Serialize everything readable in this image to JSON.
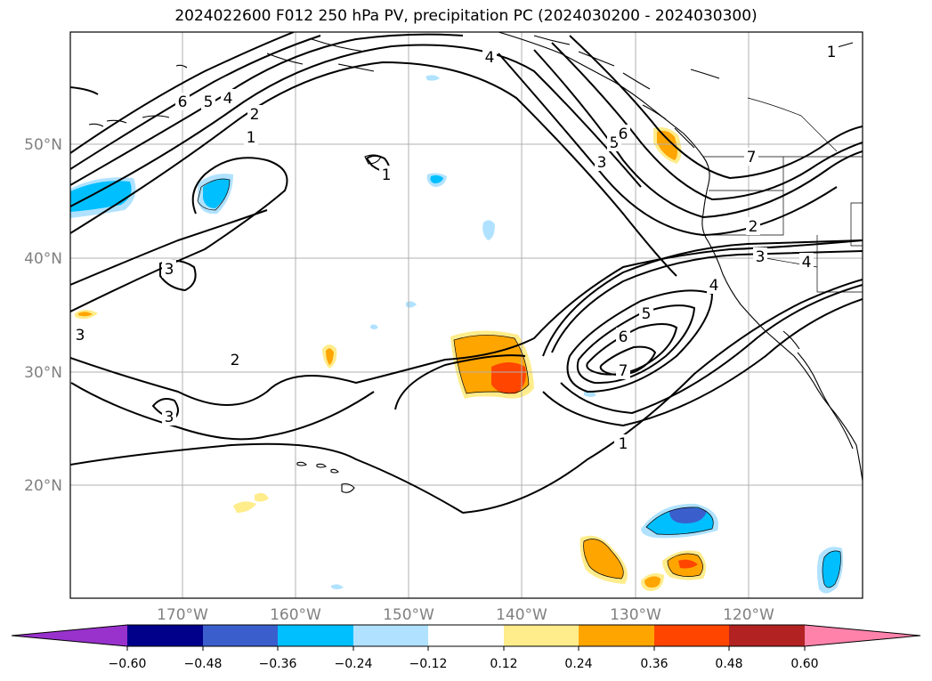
{
  "title": "2024022600 F012 250 hPa PV, precipitation PC (2024030200 - 2024030300)",
  "map": {
    "lat_labels": [
      "50°N",
      "40°N",
      "30°N",
      "20°N"
    ],
    "lon_labels": [
      "170°W",
      "160°W",
      "150°W",
      "140°W",
      "130°W",
      "120°W"
    ],
    "grid": true,
    "contour_labels": [
      "6",
      "5",
      "4",
      "2",
      "1",
      "4",
      "5",
      "6",
      "3",
      "1",
      "7",
      "2",
      "3",
      "4",
      "3",
      "2",
      "3",
      "1",
      "3",
      "5",
      "6",
      "7",
      "1",
      "4"
    ]
  },
  "colorbar": {
    "ticks": [
      "−0.60",
      "−0.48",
      "−0.36",
      "−0.24",
      "−0.12",
      "0.12",
      "0.24",
      "0.36",
      "0.48",
      "0.60"
    ],
    "colors": [
      "#9932cc",
      "#00008b",
      "#3a5fcd",
      "#00bfff",
      "#b0e2ff",
      "#ffffff",
      "#ffec8b",
      "#ffa500",
      "#ff4500",
      "#b22222",
      "#ff82ab"
    ],
    "extend": "both"
  }
}
